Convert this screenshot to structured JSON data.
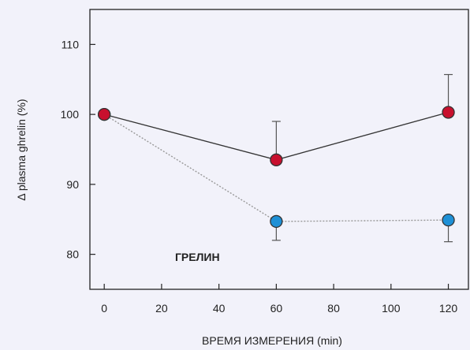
{
  "chart_data": {
    "type": "line",
    "xlabel": "ВРЕМЯ ИЗМЕРЕНИЯ  (min)",
    "ylabel": "Δ plasma ghrelin (%)",
    "annotation": "ГРЕЛИН",
    "xlim": [
      -5,
      127
    ],
    "ylim": [
      75,
      115
    ],
    "x_ticks": [
      0,
      20,
      40,
      60,
      80,
      100,
      120
    ],
    "y_ticks": [
      80,
      90,
      100,
      110
    ],
    "grid": false,
    "series": [
      {
        "color": "#c8102e",
        "line_color": "#333333",
        "line_style": "solid",
        "x": [
          0,
          60,
          120
        ],
        "y": [
          100,
          93.5,
          100.3
        ],
        "error_upper": [
          null,
          99,
          105.7
        ]
      },
      {
        "color": "#1e90d6",
        "line_color": "#999999",
        "line_style": "dotted",
        "x": [
          0,
          60,
          120
        ],
        "y": [
          100,
          84.7,
          84.9
        ],
        "error_lower": [
          null,
          82,
          81.8
        ]
      }
    ]
  }
}
